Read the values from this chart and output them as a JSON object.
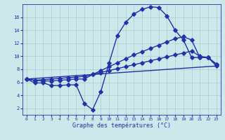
{
  "bg_color": "#cce8ea",
  "line_color": "#2233aa",
  "grid_color": "#aacccc",
  "title": "Graphe des températures (°C)",
  "xlim": [
    -0.5,
    23.5
  ],
  "ylim": [
    1.0,
    18.0
  ],
  "yticks": [
    2,
    4,
    6,
    8,
    10,
    12,
    14,
    16
  ],
  "xticks": [
    0,
    1,
    2,
    3,
    4,
    5,
    6,
    7,
    8,
    9,
    10,
    11,
    12,
    13,
    14,
    15,
    16,
    17,
    18,
    19,
    20,
    21,
    22,
    23
  ],
  "curve1_x": [
    0,
    1,
    2,
    3,
    4,
    5,
    6,
    7,
    8,
    9,
    10,
    11,
    12,
    13,
    14,
    15,
    16,
    17,
    18,
    19,
    20,
    21,
    22,
    23
  ],
  "curve1_y": [
    6.5,
    5.9,
    5.9,
    5.5,
    5.5,
    5.6,
    5.6,
    2.7,
    1.8,
    4.6,
    9.0,
    13.2,
    15.2,
    16.5,
    17.2,
    17.6,
    17.5,
    16.2,
    14.0,
    12.5,
    9.8,
    9.8,
    9.8,
    8.8
  ],
  "curve2_x": [
    0,
    1,
    2,
    3,
    4,
    5,
    6,
    7,
    8,
    9,
    10,
    11,
    12,
    13,
    14,
    15,
    16,
    17,
    18,
    19,
    20,
    21,
    22,
    23
  ],
  "curve2_y": [
    6.5,
    6.3,
    6.2,
    6.2,
    6.3,
    6.4,
    6.5,
    6.5,
    7.2,
    7.8,
    8.4,
    9.0,
    9.6,
    10.2,
    10.7,
    11.2,
    11.7,
    12.2,
    12.7,
    13.0,
    12.5,
    9.8,
    9.8,
    8.8
  ],
  "curve3_x": [
    0,
    1,
    2,
    3,
    4,
    5,
    6,
    7,
    8,
    9,
    10,
    11,
    12,
    13,
    14,
    15,
    16,
    17,
    18,
    19,
    20,
    21,
    22,
    23
  ],
  "curve3_y": [
    6.5,
    6.3,
    6.4,
    6.5,
    6.6,
    6.7,
    6.8,
    6.9,
    7.2,
    7.5,
    7.8,
    8.1,
    8.4,
    8.7,
    9.0,
    9.3,
    9.6,
    9.9,
    10.2,
    10.5,
    10.8,
    10.0,
    9.8,
    8.5
  ],
  "curve4_x": [
    0,
    23
  ],
  "curve4_y": [
    6.5,
    8.5
  ],
  "marker_size": 2.8,
  "linewidth": 1.0
}
